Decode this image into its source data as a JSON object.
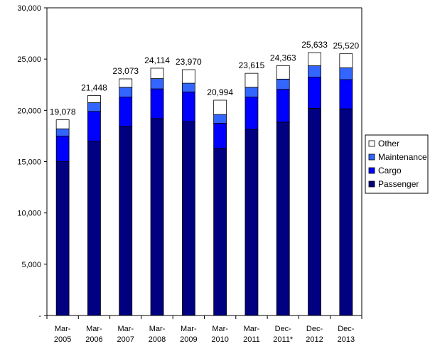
{
  "chart_data": {
    "type": "bar",
    "stacked": true,
    "categories": [
      [
        "Mar-",
        "2005"
      ],
      [
        "Mar-",
        "2006"
      ],
      [
        "Mar-",
        "2007"
      ],
      [
        "Mar-",
        "2008"
      ],
      [
        "Mar-",
        "2009"
      ],
      [
        "Mar-",
        "2010"
      ],
      [
        "Mar-",
        "2011"
      ],
      [
        "Dec-",
        "2011*"
      ],
      [
        "Dec-",
        "2012"
      ],
      [
        "Dec-",
        "2013"
      ]
    ],
    "series": [
      {
        "name": "Passenger",
        "color": "#000080",
        "values": [
          15000,
          17000,
          18450,
          19200,
          18900,
          16300,
          18150,
          18850,
          20200,
          20150
        ]
      },
      {
        "name": "Cargo",
        "color": "#0000ff",
        "values": [
          2500,
          2900,
          2850,
          2900,
          2900,
          2450,
          3150,
          3200,
          3050,
          2850
        ]
      },
      {
        "name": "Maintenance",
        "color": "#3366ff",
        "values": [
          700,
          850,
          950,
          1000,
          850,
          850,
          950,
          1000,
          1100,
          1150
        ]
      },
      {
        "name": "Other",
        "color": "#ffffff",
        "values": [
          878,
          698,
          823,
          1014,
          1320,
          1394,
          1365,
          1313,
          1283,
          1370
        ]
      }
    ],
    "totals": [
      "19,078",
      "21,448",
      "23,073",
      "24,114",
      "23,970",
      "20,994",
      "23,615",
      "24,363",
      "25,633",
      "25,520"
    ],
    "ylim": [
      0,
      30000
    ],
    "yticks": [
      {
        "value": 0,
        "label": "-"
      },
      {
        "value": 5000,
        "label": "5,000"
      },
      {
        "value": 10000,
        "label": "10,000"
      },
      {
        "value": 15000,
        "label": "15,000"
      },
      {
        "value": 20000,
        "label": "20,000"
      },
      {
        "value": 25000,
        "label": "25,000"
      },
      {
        "value": 30000,
        "label": "30,000"
      }
    ],
    "legend": {
      "position": "right",
      "order": [
        "Other",
        "Maintenance",
        "Cargo",
        "Passenger"
      ]
    },
    "grid": false
  }
}
